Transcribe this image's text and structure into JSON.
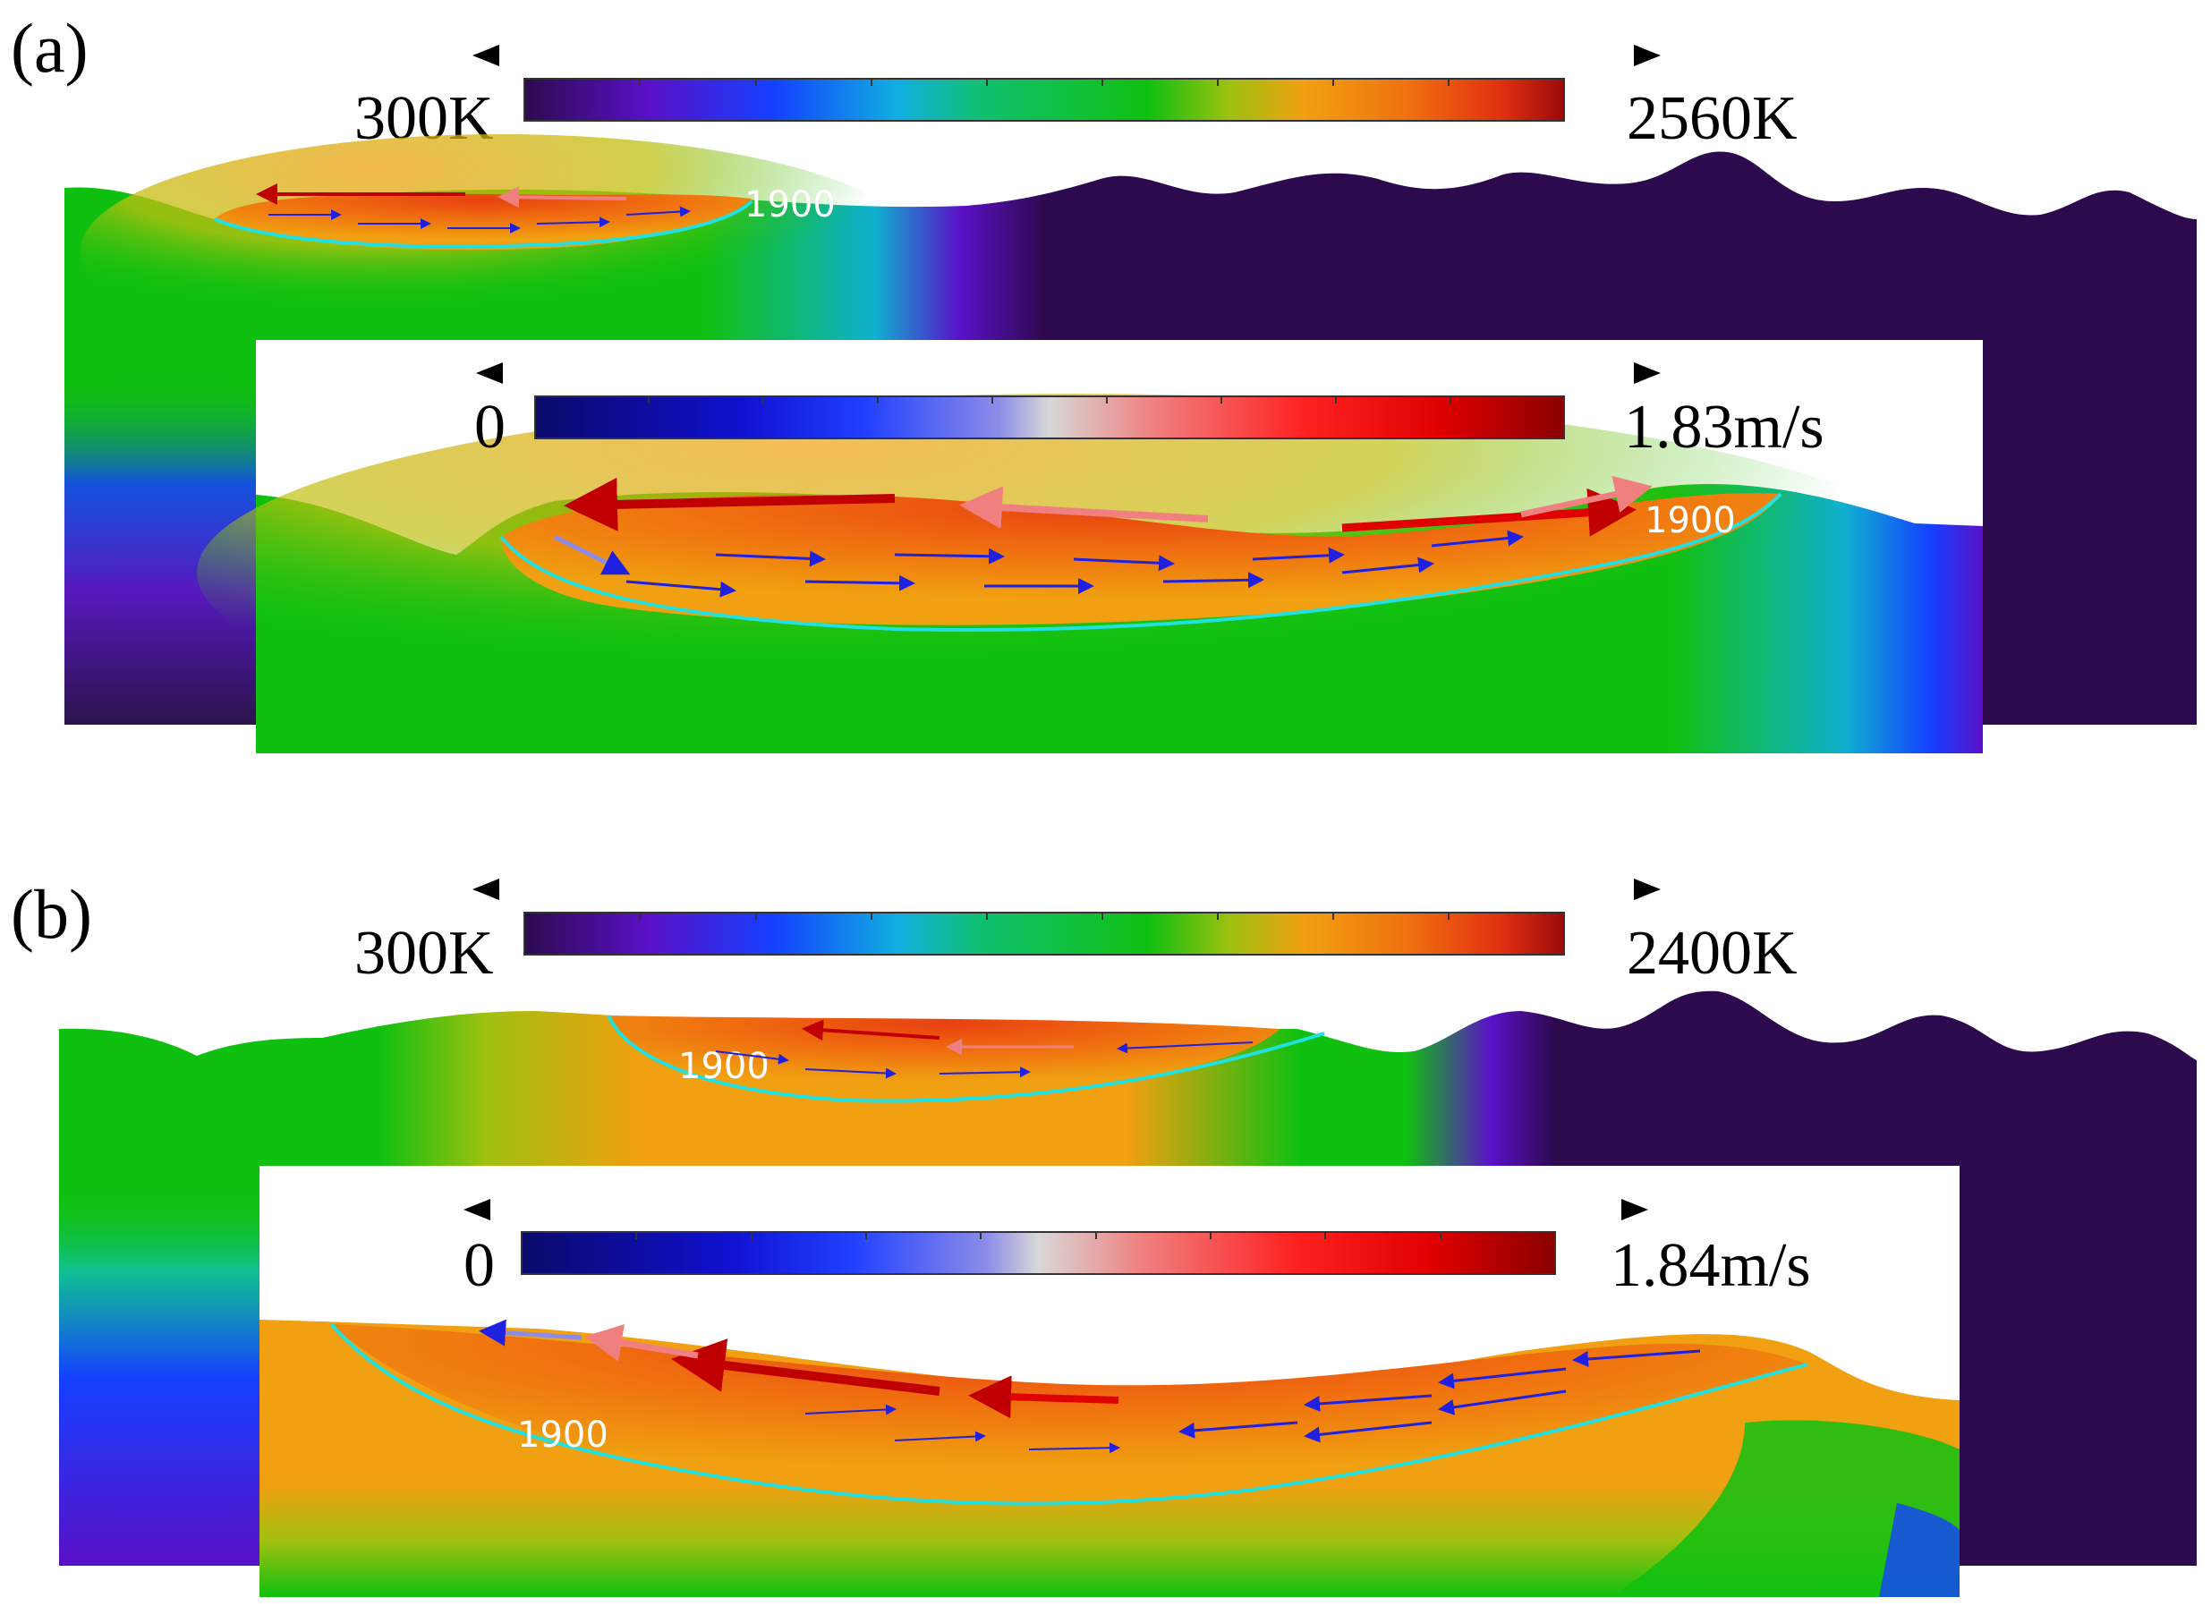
{
  "panels": [
    {
      "label": "(a)",
      "temperature_colorbar": {
        "min_label": "300K",
        "max_label": "2560K"
      },
      "velocity_colorbar": {
        "min_label": "0",
        "max_label": "1.83m/s"
      },
      "isotherm_labels": [
        "1900",
        "1900"
      ]
    },
    {
      "label": "(b)",
      "temperature_colorbar": {
        "min_label": "300K",
        "max_label": "2400K"
      },
      "velocity_colorbar": {
        "min_label": "0",
        "max_label": "1.84m/s"
      },
      "isotherm_labels": [
        "1900",
        "1900"
      ]
    }
  ],
  "colors": {
    "temperature_scale": [
      "#2d0a4e",
      "#5a10c8",
      "#1440ff",
      "#10b0e0",
      "#10c070",
      "#10c010",
      "#a0c010",
      "#f0a010",
      "#f07010",
      "#e03010",
      "#9a0a0a"
    ],
    "velocity_scale": [
      "#0a0a6a",
      "#1010d0",
      "#2040ff",
      "#8c8ce8",
      "#d8d8d8",
      "#f08080",
      "#ff2020",
      "#e00000",
      "#8a0000"
    ],
    "isotherm": "#20e0e0",
    "cold": "#2d0a4e",
    "substrate_green": "#10c010",
    "pool_orange": "#f0a010"
  }
}
